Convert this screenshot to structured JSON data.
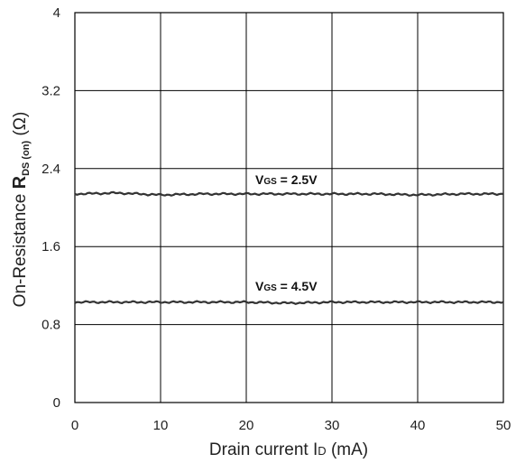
{
  "chart_data": {
    "type": "line",
    "title": "",
    "xlabel": "Drain current ",
    "xlabel_symbol": "I",
    "xlabel_sub": "D",
    "xlabel_unit": " (mA)",
    "ylabel": "On-Resistance  ",
    "ylabel_symbol": "R",
    "ylabel_sub": "DS (on)",
    "ylabel_unit": " (Ω)",
    "xlim": [
      0,
      50
    ],
    "ylim": [
      0,
      4
    ],
    "xticks": [
      "0",
      "10",
      "20",
      "30",
      "40",
      "50"
    ],
    "yticks": [
      "0",
      "0.8",
      "1.6",
      "2.4",
      "3.2",
      "4"
    ],
    "grid": true,
    "series": [
      {
        "name": "VGS = 2.5V",
        "x": [
          0,
          5,
          10,
          15,
          20,
          25,
          30,
          35,
          40,
          45,
          50
        ],
        "y": [
          2.14,
          2.15,
          2.13,
          2.14,
          2.14,
          2.14,
          2.14,
          2.14,
          2.13,
          2.14,
          2.14
        ]
      },
      {
        "name": "VGS = 4.5V",
        "x": [
          0,
          5,
          10,
          15,
          20,
          25,
          30,
          35,
          40,
          45,
          50
        ],
        "y": [
          1.03,
          1.03,
          1.03,
          1.03,
          1.03,
          1.02,
          1.03,
          1.03,
          1.03,
          1.03,
          1.03
        ]
      }
    ],
    "annotations": [
      {
        "symbol": "V",
        "sub": "GS",
        "text": " = 2.5V"
      },
      {
        "symbol": "V",
        "sub": "GS",
        "text": " = 4.5V"
      }
    ]
  }
}
